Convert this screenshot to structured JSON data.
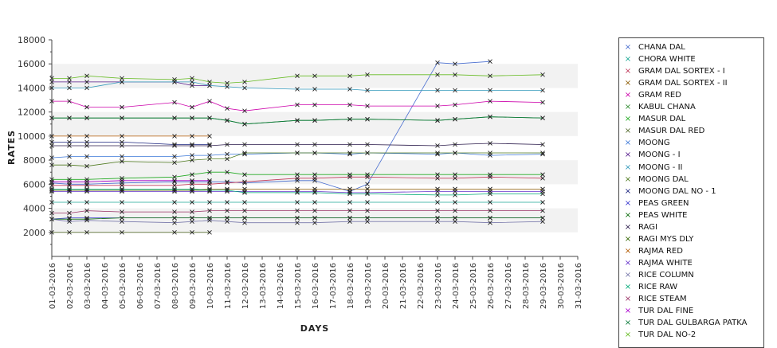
{
  "chart_data": {
    "type": "line",
    "title": "",
    "xlabel": "DAYS",
    "ylabel": "RATES",
    "ylim": [
      0,
      18000
    ],
    "yticks": [
      2000,
      4000,
      6000,
      8000,
      10000,
      12000,
      14000,
      16000,
      18000
    ],
    "x_dates": [
      "01-03-2016",
      "02-03-2016",
      "03-03-2016",
      "04-03-2016",
      "05-03-2016",
      "06-03-2016",
      "07-03-2016",
      "08-03-2016",
      "09-03-2016",
      "10-03-2016",
      "11-03-2016",
      "12-03-2016",
      "13-03-2016",
      "14-03-2016",
      "15-03-2016",
      "16-03-2016",
      "17-03-2016",
      "18-03-2016",
      "19-03-2016",
      "20-03-2016",
      "21-03-2016",
      "22-03-2016",
      "23-03-2016",
      "24-03-2016",
      "25-03-2016",
      "26-03-2016",
      "27-03-2016",
      "28-03-2016",
      "29-03-2016",
      "30-03-2016",
      "31-03-2016"
    ],
    "series": [
      {
        "name": "CHANA DAL",
        "color": "#4a6fd0",
        "days": [
          1,
          2,
          3,
          5,
          8,
          9,
          10,
          11,
          12,
          15,
          16,
          18,
          19,
          23,
          24,
          26,
          29
        ],
        "values": [
          6100,
          6000,
          6000,
          6100,
          6200,
          6200,
          6200,
          6200,
          6100,
          6300,
          6300,
          5400,
          6000,
          16100,
          16000,
          16200,
          null
        ]
      },
      {
        "name": "CHORA WHITE",
        "color": "#1aa894",
        "days": [
          1,
          2,
          3,
          5,
          8,
          9,
          10,
          11,
          12,
          15,
          16,
          18,
          19,
          23,
          24,
          26,
          29
        ],
        "values": [
          4500,
          4500,
          4500,
          4500,
          4500,
          4500,
          4500,
          4500,
          4500,
          4500,
          4500,
          4500,
          4500,
          4500,
          4500,
          4500,
          4500
        ]
      },
      {
        "name": "GRAM DAL SORTEX  - I",
        "color": "#c0395a",
        "days": [
          1,
          2,
          3,
          5,
          8,
          9,
          10,
          11,
          12,
          15,
          16,
          18,
          19,
          23,
          24,
          26,
          29
        ],
        "values": [
          5900,
          5900,
          5900,
          5900,
          5900,
          6000,
          6000,
          6100,
          6200,
          6500,
          6500,
          6600,
          6600,
          6500,
          6500,
          6600,
          6500
        ]
      },
      {
        "name": "GRAM DAL SORTEX - II",
        "color": "#8b5a00",
        "days": [
          1,
          2,
          3,
          5,
          8,
          9,
          10,
          11,
          12,
          15,
          16,
          18,
          19,
          23,
          24,
          26,
          29
        ],
        "values": [
          5500,
          5500,
          5500,
          5500,
          5500,
          5500,
          5600,
          5600,
          5600,
          5600,
          5600,
          5600,
          5600,
          5600,
          5600,
          5600,
          5600
        ]
      },
      {
        "name": "GRAM RED",
        "color": "#cc00aa",
        "days": [
          1,
          2,
          3,
          5,
          8,
          9,
          10,
          11,
          12,
          15,
          16,
          18,
          19,
          23,
          24,
          26,
          29
        ],
        "values": [
          12900,
          12900,
          12400,
          12400,
          12800,
          12400,
          12900,
          12300,
          12100,
          12600,
          12600,
          12600,
          12500,
          12500,
          12600,
          12900,
          12800
        ]
      },
      {
        "name": "KABUL CHANA",
        "color": "#2e8b2e",
        "days": [
          1,
          2,
          3,
          5,
          8,
          9,
          10,
          11,
          12,
          15,
          16,
          18,
          19,
          23,
          24,
          26,
          29
        ],
        "values": [
          11500,
          11500,
          11500,
          11500,
          11500,
          11500,
          11500,
          11300,
          11000,
          11300,
          11300,
          11400,
          11400,
          11300,
          11400,
          11600,
          11500
        ]
      },
      {
        "name": "MASUR DAL",
        "color": "#22aa22",
        "days": [
          1,
          2,
          3,
          5,
          8,
          9,
          10,
          11,
          12,
          15,
          16,
          18,
          19,
          23,
          24,
          26,
          29
        ],
        "values": [
          6400,
          6400,
          6400,
          6500,
          6600,
          6800,
          7000,
          7000,
          6800,
          6800,
          6800,
          6800,
          6800,
          6800,
          6800,
          6800,
          6800
        ]
      },
      {
        "name": "MASUR DAL RED",
        "color": "#556b2f",
        "days": [
          1,
          2,
          3,
          5,
          8,
          9,
          10,
          11,
          12,
          15,
          16,
          18,
          19,
          23,
          24,
          26,
          29
        ],
        "values": [
          2000,
          2000,
          2000,
          2000,
          2000,
          2000,
          2000,
          null,
          null,
          null,
          null,
          null,
          null,
          null,
          null,
          null,
          null
        ]
      },
      {
        "name": "MOONG",
        "color": "#3c78d8",
        "days": [
          1,
          2,
          3,
          5,
          8,
          9,
          10,
          11,
          12,
          15,
          16,
          18,
          19,
          23,
          24,
          26,
          29
        ],
        "values": [
          8200,
          8300,
          8300,
          8300,
          8300,
          8400,
          8400,
          8500,
          8500,
          8600,
          8600,
          8500,
          8600,
          8500,
          8600,
          8400,
          8500
        ]
      },
      {
        "name": "MOONG - I",
        "color": "#551a8b",
        "days": [
          1,
          2,
          3,
          5,
          8,
          9,
          10,
          11,
          12,
          15,
          16,
          18,
          19,
          23,
          24,
          26,
          29
        ],
        "values": [
          14500,
          14500,
          14500,
          14500,
          14500,
          14200,
          14200,
          null,
          null,
          null,
          null,
          null,
          null,
          null,
          null,
          null,
          null
        ]
      },
      {
        "name": "MOONG - II",
        "color": "#3399bb",
        "days": [
          1,
          2,
          3,
          5,
          8,
          9,
          10,
          11,
          12,
          15,
          16,
          18,
          19,
          23,
          24,
          26,
          29
        ],
        "values": [
          14000,
          14000,
          14000,
          14500,
          14500,
          14500,
          14200,
          14100,
          14000,
          13900,
          13900,
          13900,
          13800,
          13800,
          13800,
          13800,
          13800
        ]
      },
      {
        "name": "MOONG DAL",
        "color": "#4f7a1f",
        "days": [
          1,
          2,
          3,
          5,
          8,
          9,
          10,
          11,
          12,
          15,
          16,
          18,
          19,
          23,
          24,
          26,
          29
        ],
        "values": [
          7600,
          7600,
          7500,
          7900,
          7800,
          8000,
          8100,
          8100,
          8600,
          8600,
          8600,
          8600,
          8600,
          8600,
          8600,
          8600,
          8600
        ]
      },
      {
        "name": "MOONG DAL NO - 1",
        "color": "#1a237e",
        "days": [
          1,
          2,
          3,
          5,
          8,
          9,
          10,
          11,
          12,
          15,
          16,
          18,
          19,
          23,
          24,
          26,
          29
        ],
        "values": [
          9500,
          9500,
          9500,
          9500,
          9300,
          9300,
          9300,
          null,
          null,
          null,
          null,
          null,
          null,
          null,
          null,
          null,
          null
        ]
      },
      {
        "name": "PEAS GREEN",
        "color": "#3a3ad0",
        "days": [
          1,
          2,
          3,
          5,
          8,
          9,
          10,
          11,
          12,
          15,
          16,
          18,
          19,
          23,
          24,
          26,
          29
        ],
        "values": [
          3100,
          3200,
          3200,
          3200,
          3200,
          3200,
          3200,
          3200,
          3200,
          3200,
          3200,
          3200,
          3200,
          3200,
          3200,
          3200,
          3200
        ]
      },
      {
        "name": "PEAS WHITE",
        "color": "#0a6b0a",
        "days": [
          1,
          2,
          3,
          5,
          8,
          9,
          10,
          11,
          12,
          15,
          16,
          18,
          19,
          23,
          24,
          26,
          29
        ],
        "values": [
          3100,
          3100,
          3100,
          3200,
          3200,
          3200,
          3200,
          3200,
          3200,
          3200,
          3200,
          3200,
          3200,
          3200,
          3200,
          3200,
          3200
        ]
      },
      {
        "name": "RAGI",
        "color": "#2b1b4b",
        "days": [
          1,
          2,
          3,
          5,
          8,
          9,
          10,
          11,
          12,
          15,
          16,
          18,
          19,
          23,
          24,
          26,
          29
        ],
        "values": [
          9200,
          9200,
          9200,
          9200,
          9200,
          9200,
          9200,
          9300,
          9300,
          9300,
          9300,
          9300,
          9300,
          9200,
          9300,
          9400,
          9300
        ]
      },
      {
        "name": "RAGI MYS DLY",
        "color": "#336600",
        "days": [
          1,
          2,
          3,
          5,
          8,
          9,
          10,
          11,
          12,
          15,
          16,
          18,
          19,
          23,
          24,
          26,
          29
        ],
        "values": [
          5500,
          5500,
          5500,
          5500,
          5500,
          5500,
          5500,
          null,
          null,
          null,
          null,
          null,
          null,
          null,
          null,
          null,
          null
        ]
      },
      {
        "name": "RAJMA RED",
        "color": "#b35900",
        "days": [
          1,
          2,
          3,
          5,
          8,
          9,
          10,
          11,
          12,
          15,
          16,
          18,
          19,
          23,
          24,
          26,
          29
        ],
        "values": [
          10000,
          10000,
          10000,
          10000,
          10000,
          10000,
          10000,
          null,
          null,
          null,
          null,
          null,
          null,
          null,
          null,
          null,
          null
        ]
      },
      {
        "name": "RAJMA WHITE",
        "color": "#6633cc",
        "days": [
          1,
          2,
          3,
          5,
          8,
          9,
          10,
          11,
          12,
          15,
          16,
          18,
          19,
          23,
          24,
          26,
          29
        ],
        "values": [
          5400,
          5400,
          5400,
          5400,
          5400,
          5400,
          5400,
          5400,
          5400,
          5400,
          5400,
          5300,
          5300,
          5400,
          5400,
          5400,
          5400
        ]
      },
      {
        "name": "RICE COLUMN",
        "color": "#7777aa",
        "days": [
          1,
          2,
          3,
          5,
          8,
          9,
          10,
          11,
          12,
          15,
          16,
          18,
          19,
          23,
          24,
          26,
          29
        ],
        "values": [
          3100,
          2900,
          3000,
          2900,
          2800,
          2900,
          3000,
          2900,
          2800,
          2800,
          2800,
          2900,
          2900,
          2900,
          2900,
          2800,
          2900
        ]
      },
      {
        "name": "RICE RAW",
        "color": "#00aa77",
        "days": [
          1,
          2,
          3,
          5,
          8,
          9,
          10,
          11,
          12,
          15,
          16,
          18,
          19,
          23,
          24,
          26,
          29
        ],
        "values": [
          5600,
          5600,
          5600,
          5600,
          5600,
          5600,
          5500,
          5500,
          5300,
          5300,
          5300,
          5200,
          5200,
          5100,
          5100,
          5200,
          5200
        ]
      },
      {
        "name": "RICE STEAM",
        "color": "#993366",
        "days": [
          1,
          2,
          3,
          5,
          8,
          9,
          10,
          11,
          12,
          15,
          16,
          18,
          19,
          23,
          24,
          26,
          29
        ],
        "values": [
          3600,
          3600,
          3800,
          3700,
          3700,
          3700,
          3800,
          3800,
          3800,
          3800,
          3800,
          3800,
          3800,
          3800,
          3800,
          3800,
          3800
        ]
      },
      {
        "name": "TUR DAL FINE",
        "color": "#aa00cc",
        "days": [
          1,
          2,
          3,
          5,
          8,
          9,
          10,
          11,
          12,
          15,
          16,
          18,
          19,
          23,
          24,
          26,
          29
        ],
        "values": [
          6200,
          6200,
          6200,
          6300,
          6300,
          6300,
          6300,
          null,
          null,
          null,
          null,
          null,
          null,
          null,
          null,
          null,
          null
        ]
      },
      {
        "name": "TUR DAL GULBARGA PATKA",
        "color": "#0a7a3a",
        "days": [
          1,
          2,
          3,
          5,
          8,
          9,
          10,
          11,
          12,
          15,
          16,
          18,
          19,
          23,
          24,
          26,
          29
        ],
        "values": [
          11500,
          11500,
          11500,
          11500,
          11500,
          11500,
          11500,
          11300,
          11000,
          11300,
          11300,
          11400,
          11400,
          11300,
          11400,
          11600,
          11500
        ]
      },
      {
        "name": "TUR DAL NO-2",
        "color": "#66bb22",
        "days": [
          1,
          2,
          3,
          5,
          8,
          9,
          10,
          11,
          12,
          15,
          16,
          18,
          19,
          23,
          24,
          26,
          29
        ],
        "values": [
          14800,
          14800,
          15000,
          14800,
          14700,
          14800,
          14500,
          14400,
          14500,
          15000,
          15000,
          15000,
          15100,
          15100,
          15100,
          15000,
          15100
        ]
      }
    ]
  }
}
